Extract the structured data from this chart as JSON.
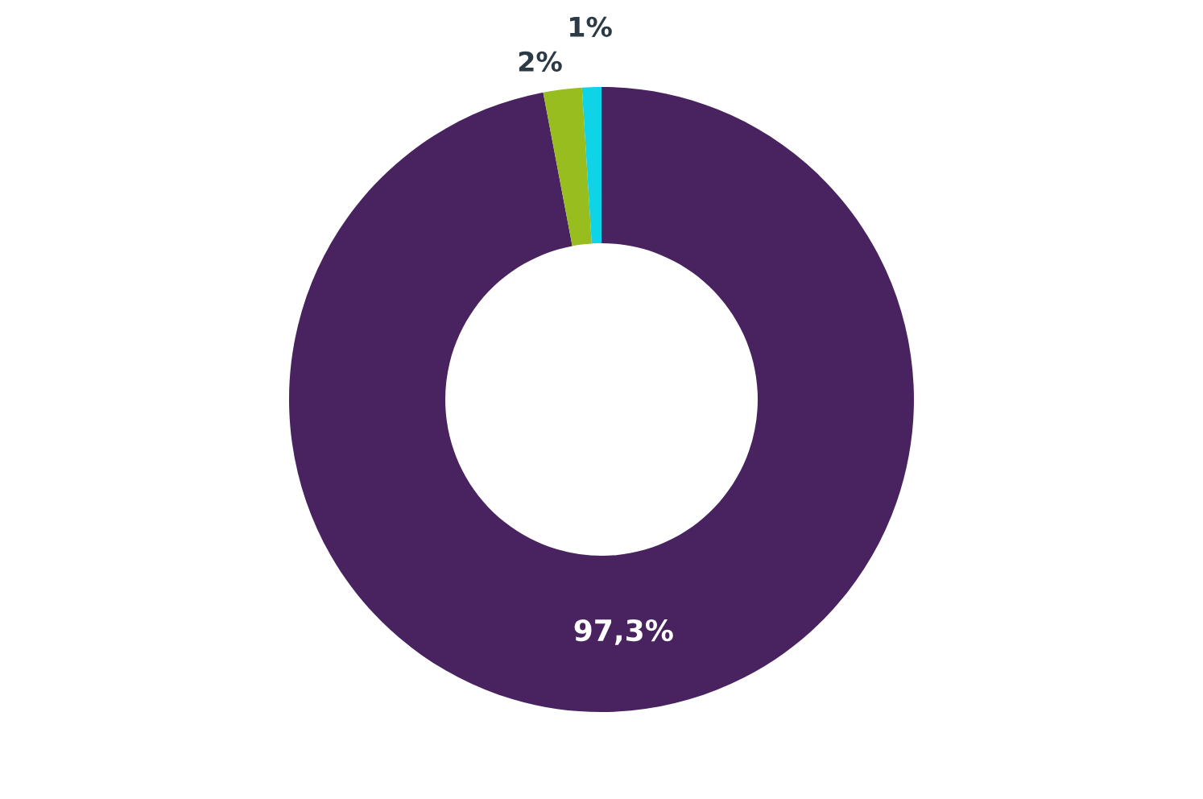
{
  "chart_data": {
    "type": "donut",
    "categories": [
      null,
      null,
      null
    ],
    "values": [
      97.3,
      2,
      1
    ],
    "colors": [
      "#482360",
      "#97be1e",
      "#0fd3e6"
    ],
    "value_labels": [
      "97,3%",
      "2%",
      "1%"
    ],
    "legend": false
  }
}
